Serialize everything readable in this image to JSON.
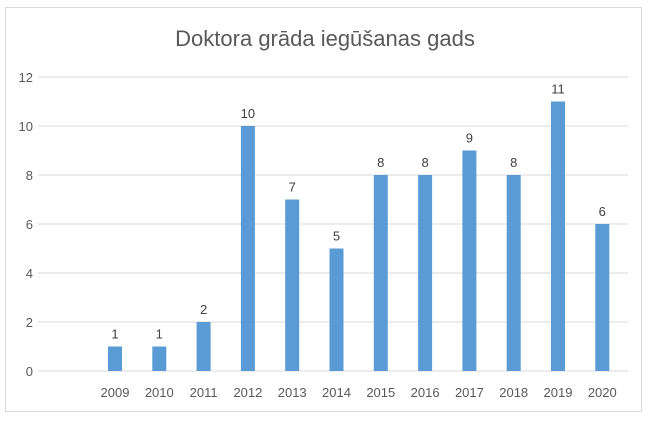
{
  "chart_data": {
    "type": "bar",
    "title": "Doktora grāda iegūšanas gads",
    "categories": [
      "2009",
      "2010",
      "2011",
      "2012",
      "2013",
      "2014",
      "2015",
      "2016",
      "2017",
      "2018",
      "2019",
      "2020"
    ],
    "values": [
      1,
      1,
      2,
      10,
      7,
      5,
      8,
      8,
      9,
      8,
      11,
      6
    ],
    "xlabel": "",
    "ylabel": "",
    "ylim": [
      0,
      12
    ],
    "yticks": [
      0,
      2,
      4,
      6,
      8,
      10,
      12
    ],
    "grid": true,
    "bar_color": "#5b9bd5",
    "legend": "none"
  }
}
